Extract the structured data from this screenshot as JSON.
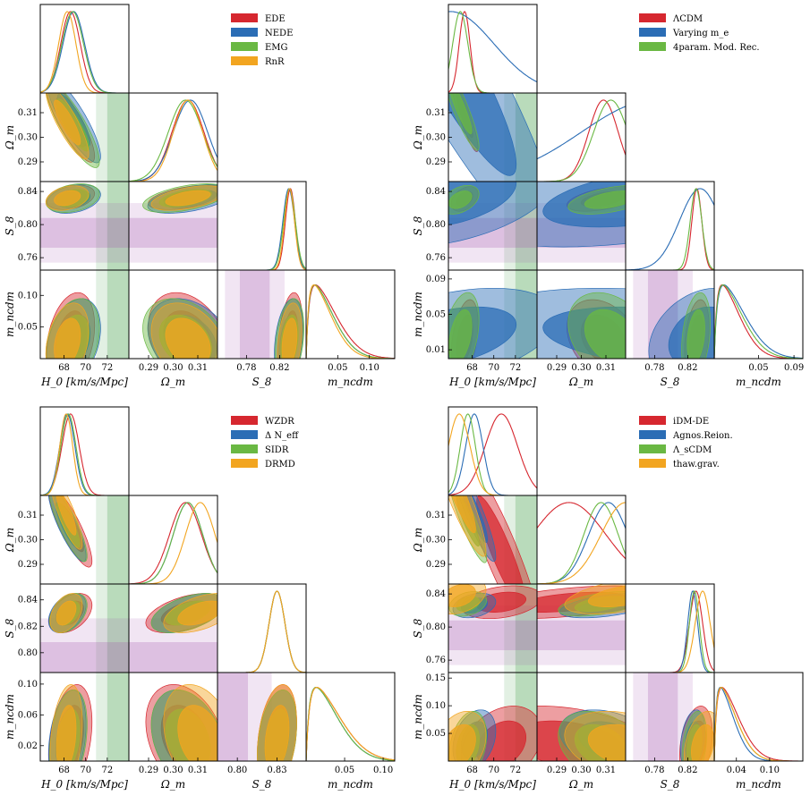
{
  "chart_data": [
    {
      "type": "corner",
      "params": [
        "H0",
        "Omega_m",
        "S8",
        "m_ncdm"
      ],
      "axis_labels": [
        "H_0 [km/s/Mpc]",
        "Ω_m",
        "S_8",
        "m_ncdm"
      ],
      "ranges": [
        [
          65.8,
          74.0
        ],
        [
          0.282,
          0.318
        ],
        [
          0.745,
          0.852
        ],
        [
          0.0,
          0.14
        ]
      ],
      "ticks": [
        [
          68,
          70,
          72
        ],
        [
          0.29,
          0.3,
          0.31
        ],
        [
          0.76,
          0.8,
          0.84
        ],
        [
          0.05,
          0.1
        ]
      ],
      "tick_labels": {
        "H0": [
          "68",
          "70",
          "72"
        ],
        "Omega_m": [
          "0.29",
          "0.30",
          "0.31"
        ],
        "S8": [
          "0.76",
          "0.80",
          "0.84"
        ],
        "S8_x": [
          "0.78",
          "0.82"
        ],
        "m_ncdm_y": [
          "0.05",
          "0.10"
        ],
        "m_ncdm_x": [
          "0.05",
          "0.10"
        ]
      },
      "bands": {
        "H0": [
          73.04,
          1.04
        ],
        "S8": [
          0.79,
          0.018
        ]
      },
      "legend": [
        "EDE",
        "NEDE",
        "EMG",
        "RnR"
      ],
      "series": [
        {
          "name": "EDE",
          "color": "#d6272f",
          "mean": [
            68.6,
            0.306,
            0.833,
            0.03
          ],
          "std": [
            0.9,
            0.0065,
            0.006,
            0.03
          ],
          "rho": [
            -0.85,
            0.3,
            0.3,
            0.5,
            -0.3,
            0.3
          ]
        },
        {
          "name": "NEDE",
          "color": "#2b6db5",
          "mean": [
            68.9,
            0.307,
            0.831,
            0.028
          ],
          "std": [
            1.0,
            0.007,
            0.007,
            0.027
          ],
          "rho": [
            -0.85,
            0.3,
            0.3,
            0.5,
            -0.3,
            0.3
          ]
        },
        {
          "name": "EMG",
          "color": "#6ab843",
          "mean": [
            68.8,
            0.305,
            0.832,
            0.028
          ],
          "std": [
            1.0,
            0.007,
            0.007,
            0.027
          ],
          "rho": [
            -0.85,
            0.3,
            0.3,
            0.5,
            -0.3,
            0.3
          ]
        },
        {
          "name": "RnR",
          "color": "#f2a520",
          "mean": [
            68.3,
            0.306,
            0.832,
            0.026
          ],
          "std": [
            0.8,
            0.006,
            0.006,
            0.025
          ],
          "rho": [
            -0.85,
            0.3,
            0.3,
            0.5,
            -0.3,
            0.3
          ]
        }
      ]
    },
    {
      "type": "corner",
      "params": [
        "H0",
        "Omega_m",
        "S8",
        "m_ncdm"
      ],
      "axis_labels": [
        "H_0 [km/s/Mpc]",
        "Ω_m",
        "S_8",
        "m_ncdm"
      ],
      "ranges": [
        [
          65.8,
          74.0
        ],
        [
          0.282,
          0.318
        ],
        [
          0.745,
          0.852
        ],
        [
          0.0,
          0.1
        ]
      ],
      "ticks": [
        [
          68,
          70,
          72
        ],
        [
          0.29,
          0.3,
          0.31
        ],
        [
          0.76,
          0.8,
          0.84
        ],
        [
          0.01,
          0.05,
          0.09
        ]
      ],
      "tick_labels": {
        "H0": [
          "68",
          "70",
          "72"
        ],
        "Omega_m": [
          "0.29",
          "0.30",
          "0.31"
        ],
        "S8": [
          "0.76",
          "0.80",
          "0.84"
        ],
        "S8_x": [
          "0.78",
          "0.82"
        ],
        "m_ncdm_y": [
          "0.01",
          "0.05",
          "0.09"
        ],
        "m_ncdm_x": [
          "0.05",
          "0.09"
        ]
      },
      "bands": {
        "H0": [
          73.04,
          1.04
        ],
        "S8": [
          0.79,
          0.018
        ]
      },
      "legend": [
        "ΛCDM",
        "Varying m_e",
        "4param. Mod. Rec."
      ],
      "series": [
        {
          "name": "ΛCDM",
          "color": "#d6272f",
          "mean": [
            67.3,
            0.309,
            0.831,
            0.022
          ],
          "std": [
            0.5,
            0.006,
            0.006,
            0.018
          ],
          "rho": [
            -0.9,
            0.4,
            0.4,
            0.5,
            -0.3,
            0.3
          ]
        },
        {
          "name": "Varying m_e",
          "color": "#2b6db5",
          "mean": [
            66.0,
            0.33,
            0.835,
            0.025
          ],
          "std": [
            4.0,
            0.03,
            0.025,
            0.022
          ],
          "rho": [
            -0.9,
            0.4,
            0.4,
            0.5,
            -0.3,
            0.3
          ]
        },
        {
          "name": "4param. Mod. Rec.",
          "color": "#6ab843",
          "mean": [
            66.9,
            0.312,
            0.83,
            0.025
          ],
          "std": [
            0.7,
            0.007,
            0.007,
            0.02
          ],
          "rho": [
            -0.9,
            0.4,
            0.4,
            0.5,
            -0.3,
            0.3
          ]
        }
      ]
    },
    {
      "type": "corner",
      "params": [
        "H0",
        "Omega_m",
        "S8",
        "m_ncdm"
      ],
      "axis_labels": [
        "H_0 [km/s/Mpc]",
        "Ω_m",
        "S_8",
        "m_ncdm"
      ],
      "ranges": [
        [
          65.8,
          74.0
        ],
        [
          0.282,
          0.318
        ],
        [
          0.785,
          0.852
        ],
        [
          0.0,
          0.115
        ]
      ],
      "ticks": [
        [
          68,
          70,
          72
        ],
        [
          0.29,
          0.3,
          0.31
        ],
        [
          0.8,
          0.82,
          0.84
        ],
        [
          0.02,
          0.06,
          0.1
        ]
      ],
      "tick_labels": {
        "H0": [
          "68",
          "70",
          "72"
        ],
        "Omega_m": [
          "0.29",
          "0.30",
          "0.31"
        ],
        "S8": [
          "0.80",
          "0.82",
          "0.84"
        ],
        "S8_x": [
          "0.80",
          "0.83"
        ],
        "m_ncdm_y": [
          "0.02",
          "0.06",
          "0.10"
        ],
        "m_ncdm_x": [
          "0.05",
          "0.10"
        ]
      },
      "bands": {
        "H0": [
          73.04,
          1.04
        ],
        "S8": [
          0.79,
          0.018
        ]
      },
      "legend": [
        "WZDR",
        "Δ N_eff",
        "SIDR",
        "DRMD"
      ],
      "series": [
        {
          "name": "WZDR",
          "color": "#d6272f",
          "mean": [
            68.6,
            0.305,
            0.83,
            0.03
          ],
          "std": [
            0.8,
            0.0065,
            0.006,
            0.028
          ],
          "rho": [
            -0.85,
            0.4,
            0.3,
            0.5,
            -0.3,
            0.3
          ]
        },
        {
          "name": "Δ N_eff",
          "color": "#2b6db5",
          "mean": [
            68.3,
            0.306,
            0.83,
            0.028
          ],
          "std": [
            0.7,
            0.006,
            0.006,
            0.026
          ],
          "rho": [
            -0.85,
            0.4,
            0.3,
            0.5,
            -0.3,
            0.3
          ]
        },
        {
          "name": "SIDR",
          "color": "#6ab843",
          "mean": [
            68.4,
            0.306,
            0.83,
            0.028
          ],
          "std": [
            0.7,
            0.006,
            0.006,
            0.026
          ],
          "rho": [
            -0.85,
            0.4,
            0.3,
            0.5,
            -0.3,
            0.3
          ]
        },
        {
          "name": "DRMD",
          "color": "#f2a520",
          "mean": [
            68.2,
            0.311,
            0.83,
            0.03
          ],
          "std": [
            0.6,
            0.006,
            0.006,
            0.028
          ],
          "rho": [
            -0.85,
            0.4,
            0.3,
            0.5,
            -0.3,
            0.3
          ]
        }
      ]
    },
    {
      "type": "corner",
      "params": [
        "H0",
        "Omega_m",
        "S8",
        "m_ncdm"
      ],
      "axis_labels": [
        "H_0 [km/s/Mpc]",
        "Ω_m",
        "S_8",
        "m_ncdm"
      ],
      "ranges": [
        [
          65.8,
          74.0
        ],
        [
          0.282,
          0.318
        ],
        [
          0.745,
          0.852
        ],
        [
          0.0,
          0.16
        ]
      ],
      "ticks": [
        [
          68,
          70,
          72
        ],
        [
          0.29,
          0.3,
          0.31
        ],
        [
          0.76,
          0.8,
          0.84
        ],
        [
          0.05,
          0.1,
          0.15
        ]
      ],
      "tick_labels": {
        "H0": [
          "68",
          "70",
          "72"
        ],
        "Omega_m": [
          "0.29",
          "0.30",
          "0.31"
        ],
        "S8": [
          "0.76",
          "0.80",
          "0.84"
        ],
        "S8_x": [
          "0.78",
          "0.82"
        ],
        "m_ncdm_y": [
          "0.05",
          "0.10",
          "0.15"
        ],
        "m_ncdm_x": [
          "0.04",
          "0.10"
        ]
      },
      "bands": {
        "H0": [
          73.04,
          1.04
        ],
        "S8": [
          0.79,
          0.018
        ]
      },
      "legend": [
        "iDM-DE",
        "Agnos.Reion.",
        "Λ_sCDM",
        "thaw.grav."
      ],
      "series": [
        {
          "name": "iDM-DE",
          "color": "#d6272f",
          "mean": [
            70.7,
            0.295,
            0.83,
            0.03
          ],
          "std": [
            1.5,
            0.015,
            0.008,
            0.028
          ],
          "rho": [
            -0.9,
            0.3,
            0.3,
            0.5,
            -0.3,
            0.3
          ]
        },
        {
          "name": "Agnos.Reion.",
          "color": "#2b6db5",
          "mean": [
            68.2,
            0.311,
            0.826,
            0.038
          ],
          "std": [
            0.8,
            0.008,
            0.006,
            0.022
          ],
          "rho": [
            -0.9,
            0.3,
            0.3,
            0.5,
            -0.3,
            0.3
          ]
        },
        {
          "name": "Λ_sCDM",
          "color": "#6ab843",
          "mean": [
            67.6,
            0.308,
            0.828,
            0.028
          ],
          "std": [
            0.7,
            0.007,
            0.006,
            0.025
          ],
          "rho": [
            -0.9,
            0.3,
            0.3,
            0.5,
            -0.3,
            0.3
          ]
        },
        {
          "name": "thaw.grav.",
          "color": "#f2a520",
          "mean": [
            66.8,
            0.318,
            0.838,
            0.028
          ],
          "std": [
            1.0,
            0.01,
            0.009,
            0.025
          ],
          "rho": [
            -0.9,
            0.3,
            0.3,
            0.5,
            -0.3,
            0.3
          ]
        }
      ]
    }
  ]
}
